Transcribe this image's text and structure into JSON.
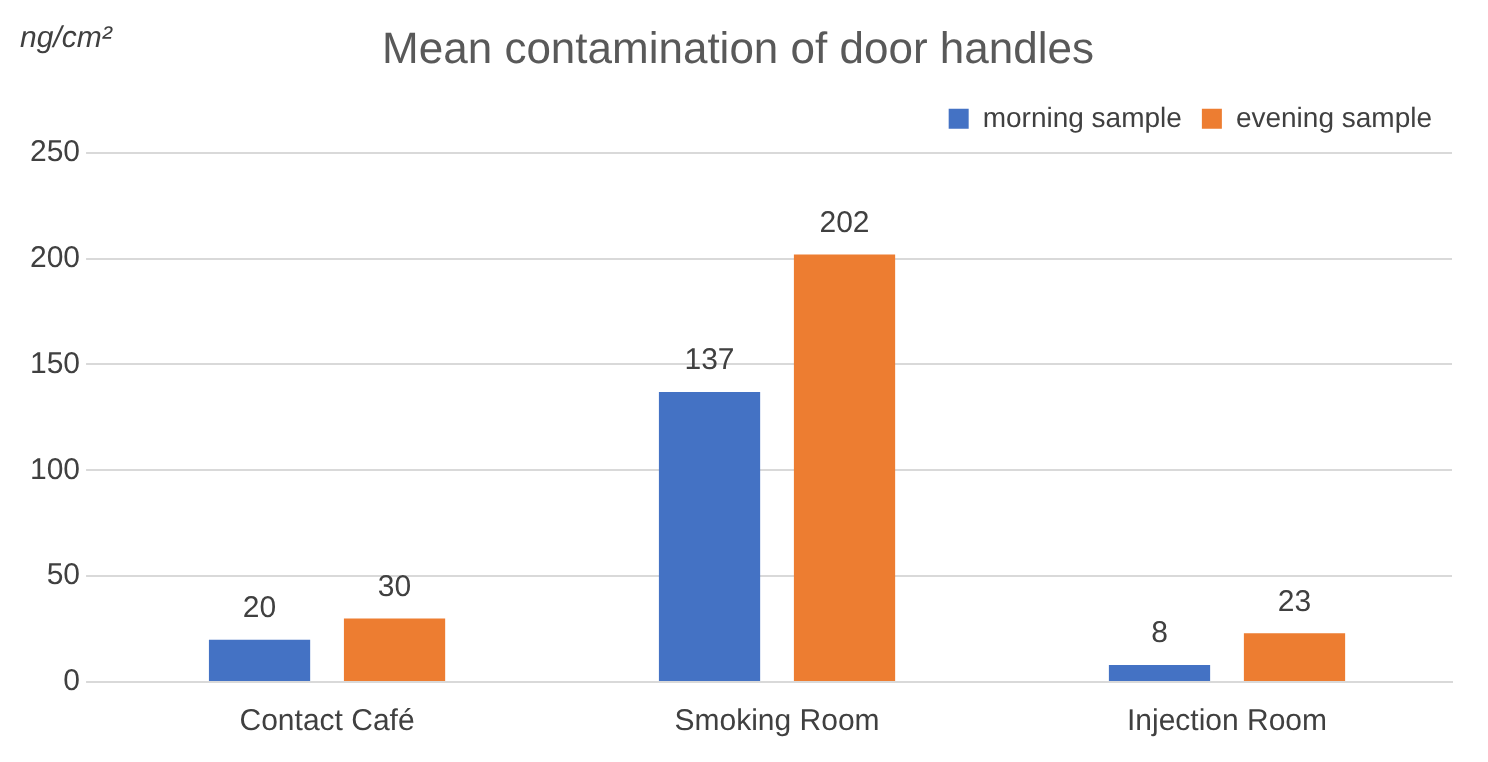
{
  "chart_data": {
    "type": "bar",
    "title": "Mean contamination of door handles",
    "ylabel": "ng/cm²",
    "categories": [
      "Contact Café",
      "Smoking Room",
      "Injection Room"
    ],
    "series": [
      {
        "name": "morning sample",
        "color": "#4472c4",
        "values": [
          20,
          137,
          8
        ]
      },
      {
        "name": "evening sample",
        "color": "#ed7d31",
        "values": [
          30,
          202,
          23
        ]
      }
    ],
    "ylim": [
      0,
      250
    ],
    "yticks": [
      0,
      50,
      100,
      150,
      200,
      250
    ],
    "grid": "y",
    "legend": "top right",
    "data_labels": true
  }
}
